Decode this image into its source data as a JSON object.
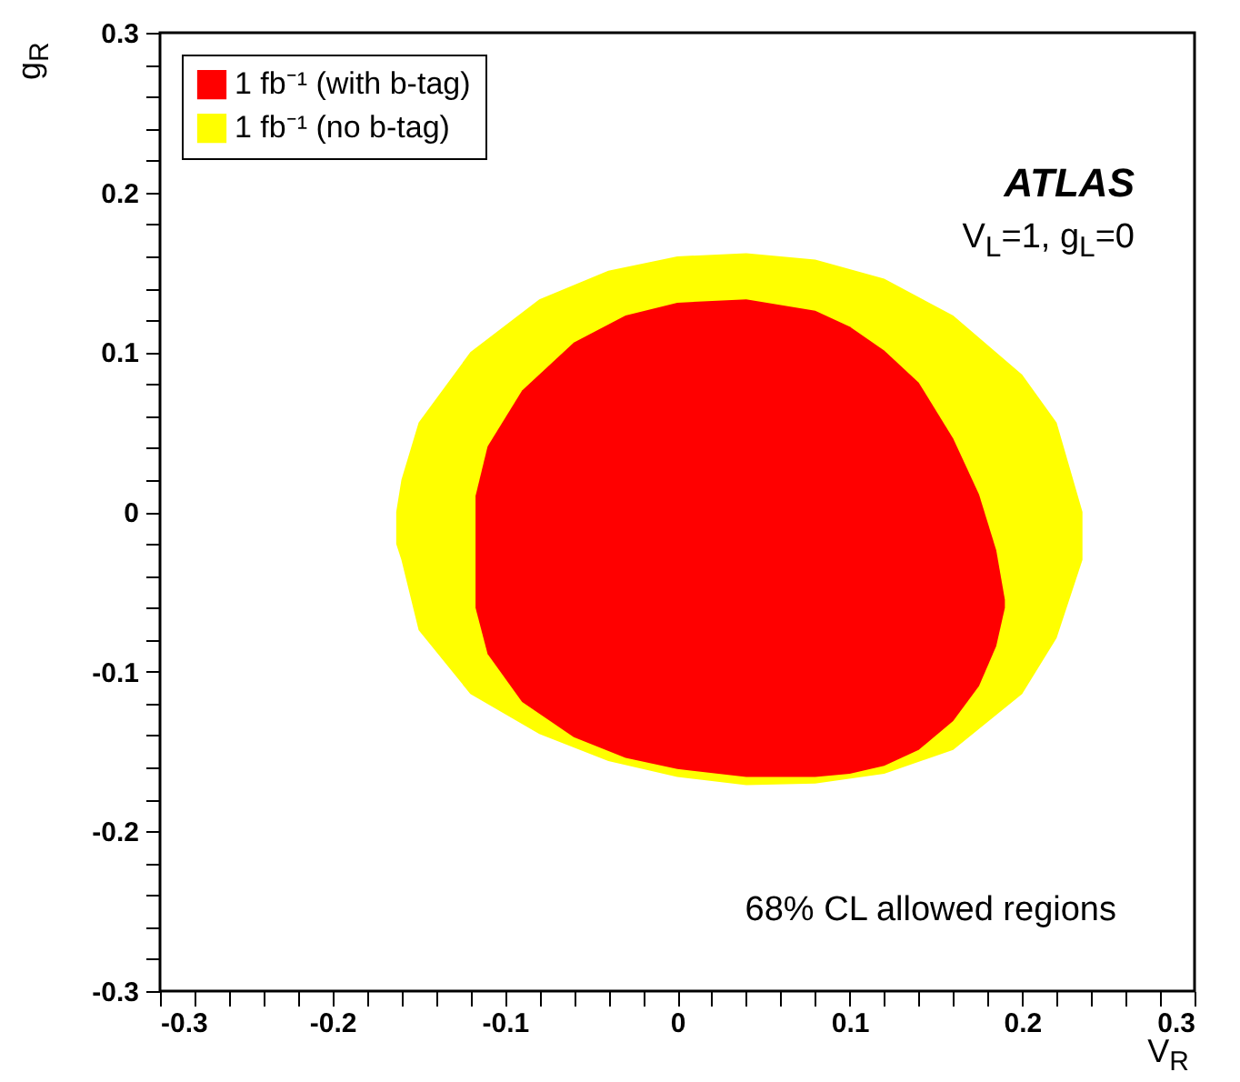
{
  "chart_data": {
    "type": "area",
    "xlabel": "V$_{R}$",
    "ylabel": "g$_{R}$",
    "annotations": [
      "ATLAS",
      "V$_{L}$=1, g$_{L}$=0",
      "68% CL allowed regions"
    ],
    "xlim": [
      -0.3,
      0.3
    ],
    "ylim": [
      -0.3,
      0.3
    ],
    "xticks": [
      -0.3,
      {
        "value": -0.28,
        "label": null
      },
      {
        "value": -0.26,
        "label": null
      },
      {
        "value": -0.24,
        "label": null
      },
      {
        "value": -0.22,
        "label": null
      },
      -0.2,
      {
        "value": -0.18,
        "label": null
      },
      {
        "value": -0.16,
        "label": null
      },
      {
        "value": -0.14,
        "label": null
      },
      {
        "value": -0.12,
        "label": null
      },
      -0.1,
      {
        "value": -0.08,
        "label": null
      },
      {
        "value": -0.06,
        "label": null
      },
      {
        "value": -0.04,
        "label": null
      },
      {
        "value": -0.02,
        "label": null
      },
      0,
      {
        "value": 0.02,
        "label": null
      },
      {
        "value": 0.04,
        "label": null
      },
      {
        "value": 0.06,
        "label": null
      },
      {
        "value": 0.08,
        "label": null
      },
      0.1,
      {
        "value": 0.12,
        "label": null
      },
      {
        "value": 0.14,
        "label": null
      },
      {
        "value": 0.16,
        "label": null
      },
      {
        "value": 0.18,
        "label": null
      },
      0.2,
      {
        "value": 0.22,
        "label": null
      },
      {
        "value": 0.24,
        "label": null
      },
      {
        "value": 0.26,
        "label": null
      },
      {
        "value": 0.28,
        "label": null
      },
      0.3
    ],
    "yticks": [
      -0.3,
      {
        "value": -0.28,
        "label": null
      },
      {
        "value": -0.26,
        "label": null
      },
      {
        "value": -0.24,
        "label": null
      },
      {
        "value": -0.22,
        "label": null
      },
      -0.2,
      {
        "value": -0.18,
        "label": null
      },
      {
        "value": -0.16,
        "label": null
      },
      {
        "value": -0.14,
        "label": null
      },
      {
        "value": -0.12,
        "label": null
      },
      -0.1,
      {
        "value": -0.08,
        "label": null
      },
      {
        "value": -0.06,
        "label": null
      },
      {
        "value": -0.04,
        "label": null
      },
      {
        "value": -0.02,
        "label": null
      },
      0,
      {
        "value": 0.02,
        "label": null
      },
      {
        "value": 0.04,
        "label": null
      },
      {
        "value": 0.06,
        "label": null
      },
      {
        "value": 0.08,
        "label": null
      },
      0.1,
      {
        "value": 0.12,
        "label": null
      },
      {
        "value": 0.14,
        "label": null
      },
      {
        "value": 0.16,
        "label": null
      },
      {
        "value": 0.18,
        "label": null
      },
      0.2,
      {
        "value": 0.22,
        "label": null
      },
      {
        "value": 0.24,
        "label": null
      },
      {
        "value": 0.26,
        "label": null
      },
      {
        "value": 0.28,
        "label": null
      },
      0.3
    ],
    "grid": false,
    "legend": "top left",
    "series": [
      {
        "name": "1 fb⁻¹ (with b-tag)",
        "color": "#ff0000",
        "x": [
          -0.117,
          -0.11,
          -0.09,
          -0.06,
          -0.03,
          0,
          0.04,
          0.08,
          0.1,
          0.12,
          0.14,
          0.16,
          0.175,
          0.185,
          0.19
        ],
        "values": [
          null,
          null,
          null,
          null,
          null,
          null,
          null,
          null,
          null,
          null,
          null,
          null,
          null,
          null,
          null
        ],
        "upper": [
          0.01,
          0.041,
          0.076,
          0.106,
          0.123,
          0.131,
          0.133,
          0.126,
          0.116,
          0.101,
          0.081,
          0.046,
          0.011,
          -0.024,
          -0.055
        ],
        "lower": [
          -0.06,
          -0.089,
          -0.119,
          -0.141,
          -0.154,
          -0.161,
          -0.166,
          -0.166,
          -0.164,
          -0.159,
          -0.149,
          -0.131,
          -0.109,
          -0.084,
          -0.06
        ]
      },
      {
        "name": "1 fb⁻¹ (no b-tag)",
        "color": "#ffff00",
        "x": [
          -0.163,
          -0.16,
          -0.15,
          -0.12,
          -0.08,
          -0.04,
          0,
          0.04,
          0.08,
          0.12,
          0.16,
          0.2,
          0.22,
          0.235
        ],
        "values": [
          null,
          null,
          null,
          null,
          null,
          null,
          null,
          null,
          null,
          null,
          null,
          null,
          null,
          null
        ],
        "upper": [
          0.0,
          0.02,
          0.056,
          0.1,
          0.133,
          0.151,
          0.16,
          0.162,
          0.158,
          0.146,
          0.123,
          0.086,
          0.056,
          0.0
        ],
        "lower": [
          -0.02,
          -0.03,
          -0.074,
          -0.114,
          -0.139,
          -0.156,
          -0.166,
          -0.171,
          -0.17,
          -0.164,
          -0.149,
          -0.114,
          -0.079,
          -0.03
        ]
      }
    ]
  }
}
